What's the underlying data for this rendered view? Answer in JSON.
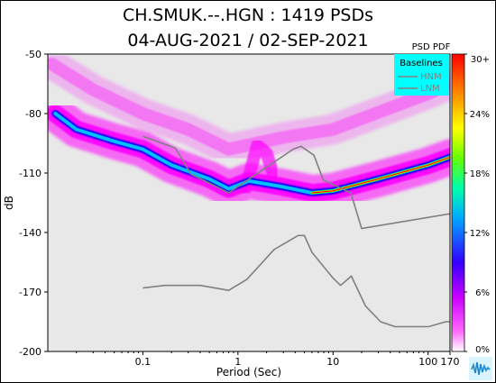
{
  "header": {
    "title": "CH.SMUK.--.HGN : 1419 PSDs",
    "subtitle": "04-AUG-2021 / 02-SEP-2021"
  },
  "colorbar": {
    "title": "PSD PDF",
    "ticks": [
      "30+",
      "24%",
      "18%",
      "12%",
      "6%",
      "0%"
    ],
    "tick_values": [
      30,
      24,
      18,
      12,
      6,
      0
    ]
  },
  "legend": {
    "title": "Baselines",
    "entries": [
      "HNM",
      "LNM"
    ],
    "color": "#808080",
    "background": "#00ffff",
    "placement": "top-right"
  },
  "chart_data": {
    "type": "heatmap",
    "xlabel": "Period (Sec)",
    "ylabel": "dB",
    "xscale": "log",
    "xlim": [
      0.01,
      170
    ],
    "ylim": [
      -200,
      -50
    ],
    "xticks": [
      0.1,
      1,
      10,
      100,
      170
    ],
    "xtick_labels": [
      "0.1",
      "1",
      "10",
      "100",
      "170"
    ],
    "yticks": [
      -50,
      -80,
      -110,
      -140,
      -170,
      -200
    ],
    "ytick_labels": [
      "-50",
      "-80",
      "-110",
      "-140",
      "-170",
      "-200"
    ],
    "background": "#e8e8e8",
    "colormap": [
      "#ff00ff",
      "#0000ff",
      "#00c8ff",
      "#00ff00",
      "#ffff00",
      "#ff8c00",
      "#ff0000"
    ],
    "series": [
      {
        "name": "HNM",
        "x": [
          0.1,
          0.22,
          0.32,
          0.8,
          3.8,
          4.6,
          6.3,
          7.9,
          15.4,
          20,
          354.8
        ],
        "y": [
          -91.5,
          -97.4,
          -110.5,
          -120,
          -98,
          -96.5,
          -101,
          -113.5,
          -120,
          -138,
          -128
        ]
      },
      {
        "name": "LNM",
        "x": [
          0.1,
          0.17,
          0.4,
          0.8,
          1.24,
          2.4,
          4.3,
          5,
          6,
          10,
          12,
          15.6,
          21.9,
          31.6,
          45,
          70,
          101,
          154,
          328.6
        ],
        "y": [
          -168,
          -166.7,
          -166.7,
          -169.2,
          -163.7,
          -148.6,
          -141.5,
          -141.5,
          -150,
          -163,
          -166.7,
          -162,
          -177,
          -185,
          -187.5,
          -187.5,
          -187.5,
          -185,
          -185
        ]
      }
    ],
    "density_bands": [
      {
        "x": [
          0.012,
          0.02,
          0.05,
          0.1,
          0.2,
          0.5,
          0.8,
          1.3,
          3,
          6,
          10,
          30,
          100,
          170
        ],
        "y": [
          -80,
          -88,
          -94,
          -98,
          -106,
          -113,
          -118,
          -114,
          -117,
          -120,
          -119,
          -113,
          -106,
          -102
        ]
      },
      {
        "x": [
          0.011,
          0.03,
          0.1,
          0.3,
          0.8,
          3,
          10,
          100,
          170
        ],
        "y": [
          -55,
          -68,
          -80,
          -88,
          -98,
          -92,
          -88,
          -70,
          -65
        ]
      },
      {
        "x": [
          1.2,
          1.6,
          2.0,
          2.4
        ],
        "y": [
          -118,
          -96,
          -100,
          -112
        ]
      }
    ]
  }
}
